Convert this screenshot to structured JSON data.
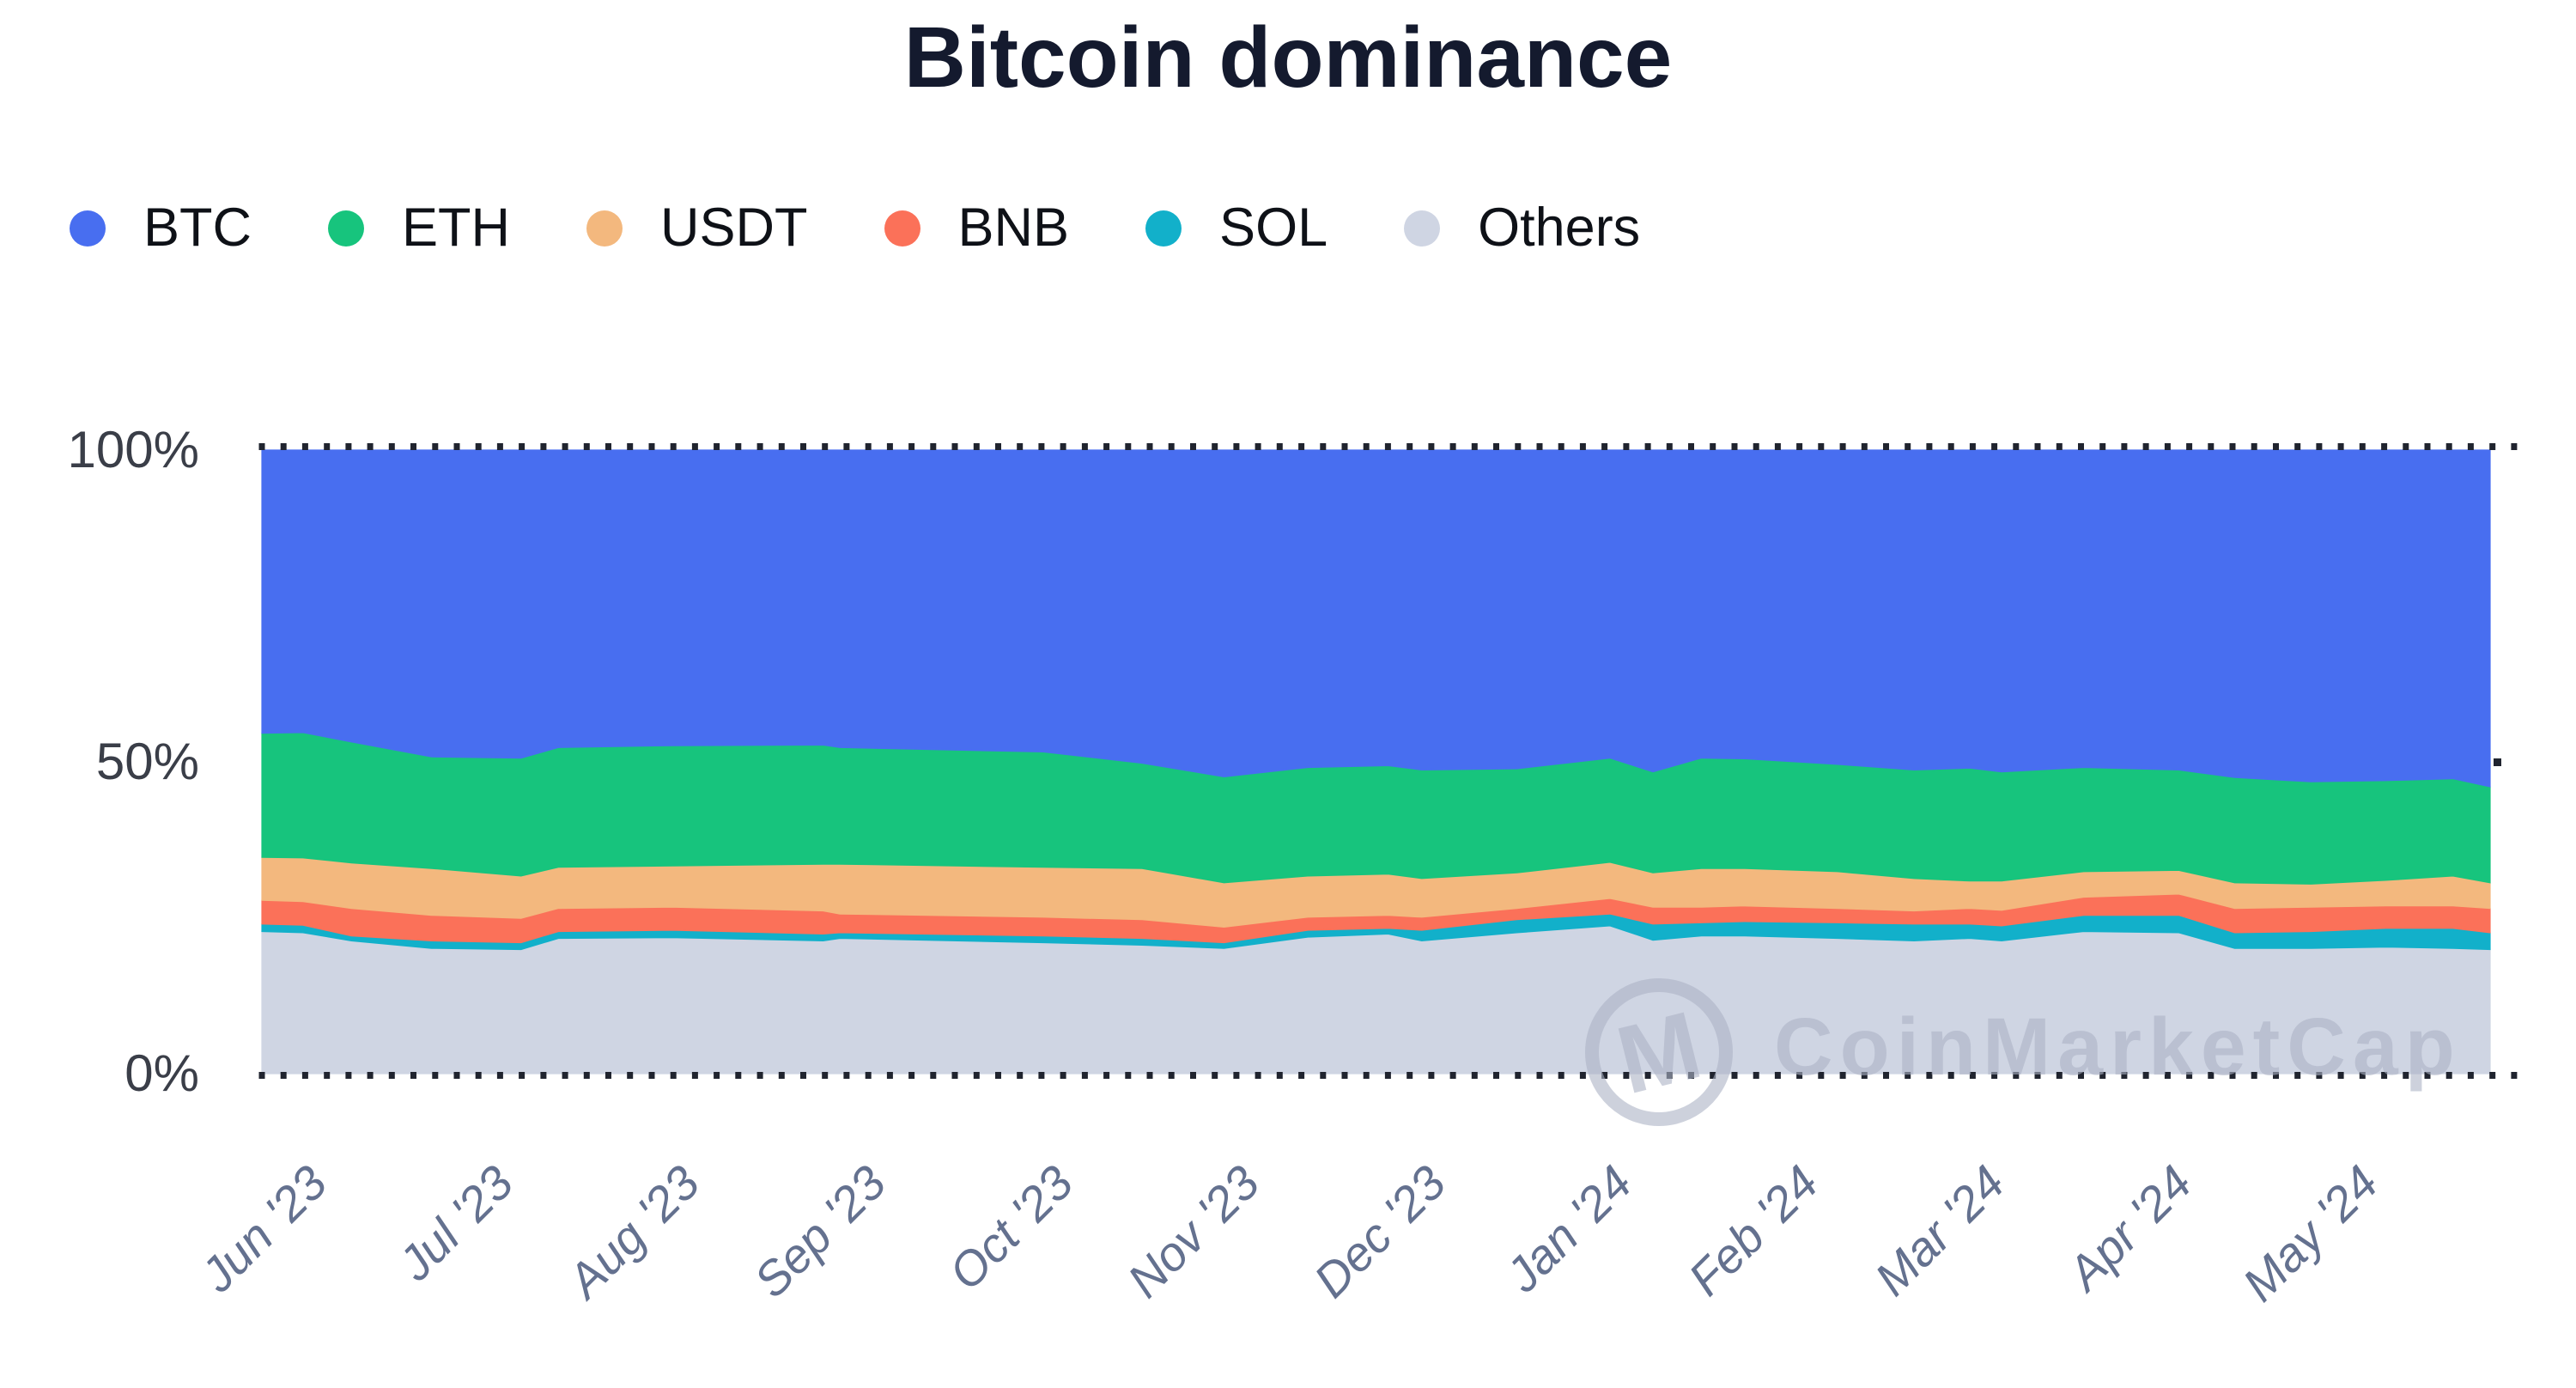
{
  "chart_data": {
    "type": "area",
    "stacked": true,
    "normalized_to_100_percent": true,
    "title": "Bitcoin dominance",
    "xlabel": "",
    "ylabel": "",
    "ylim": [
      0,
      100
    ],
    "grid": "dotted horizontal lines at 0% and 100%, small right tick at 50%",
    "legend_position": "top-left",
    "watermark": "CoinMarketCap",
    "watermark_logo_letter": "M",
    "x_tick_labels": [
      "Jun '23",
      "Jul '23",
      "Aug '23",
      "Sep '23",
      "Oct '23",
      "Nov '23",
      "Dec '23",
      "Jan '24",
      "Feb '24",
      "Mar '24",
      "Apr '24",
      "May '24"
    ],
    "y_ticks": [
      {
        "label": "100%",
        "value": 100
      },
      {
        "label": "50%",
        "value": 50
      },
      {
        "label": "0%",
        "value": 0
      }
    ],
    "x_months": [
      0.0,
      0.22,
      0.48,
      0.91,
      1.39,
      1.59,
      2.2,
      3.01,
      3.1,
      4.19,
      4.72,
      5.16,
      5.61,
      6.04,
      6.22,
      6.73,
      7.23,
      7.46,
      7.72,
      7.95,
      8.45,
      8.86,
      9.16,
      9.33,
      9.77,
      10.28,
      10.58,
      10.99,
      11.39,
      11.75,
      11.95
    ],
    "stack_order_bottom_up": [
      "Others",
      "SOL",
      "BNB",
      "USDT",
      "ETH",
      "BTC"
    ],
    "series": [
      {
        "name": "BTC",
        "color": "#486ef0",
        "values": [
          45.4,
          45.3,
          46.8,
          49.2,
          49.4,
          47.7,
          47.4,
          47.3,
          47.7,
          48.4,
          50.2,
          52.4,
          50.9,
          50.6,
          51.3,
          51.1,
          49.4,
          51.6,
          49.4,
          49.5,
          50.4,
          51.3,
          51.0,
          51.6,
          50.9,
          51.3,
          52.5,
          53.2,
          53.0,
          52.7,
          54.0
        ]
      },
      {
        "name": "ETH",
        "color": "#17c47d",
        "values": [
          19.9,
          20.1,
          19.4,
          17.9,
          18.9,
          19.2,
          19.3,
          19.1,
          18.7,
          18.5,
          16.9,
          17.0,
          17.4,
          17.4,
          17.4,
          16.7,
          16.7,
          16.2,
          17.7,
          17.6,
          17.2,
          17.4,
          18.1,
          17.5,
          16.7,
          16.1,
          16.9,
          16.4,
          16.0,
          15.6,
          15.4
        ]
      },
      {
        "name": "USDT",
        "color": "#f3b87e",
        "values": [
          6.9,
          7.0,
          7.3,
          7.5,
          6.8,
          6.6,
          6.6,
          7.5,
          8.0,
          8.0,
          8.2,
          7.1,
          6.6,
          6.6,
          6.2,
          5.7,
          5.8,
          5.5,
          6.2,
          6.0,
          5.9,
          5.2,
          4.4,
          4.7,
          4.1,
          3.8,
          4.1,
          3.7,
          4.1,
          4.8,
          4.1
        ]
      },
      {
        "name": "BNB",
        "color": "#fb7159",
        "values": [
          3.8,
          3.8,
          4.4,
          4.1,
          3.9,
          3.7,
          3.7,
          3.7,
          3.0,
          3.0,
          3.0,
          2.5,
          2.1,
          2.1,
          2.1,
          1.8,
          2.5,
          2.7,
          2.5,
          2.5,
          2.3,
          2.1,
          2.5,
          2.5,
          2.9,
          3.4,
          3.9,
          3.9,
          3.6,
          3.6,
          3.9
        ]
      },
      {
        "name": "SOL",
        "color": "#12b0ca",
        "values": [
          1.2,
          1.2,
          0.8,
          1.2,
          1.1,
          1.1,
          1.2,
          1.1,
          0.9,
          1.1,
          1.1,
          0.9,
          1.1,
          0.9,
          1.7,
          2.1,
          1.9,
          2.6,
          2.1,
          2.3,
          2.5,
          2.7,
          2.3,
          2.4,
          2.6,
          2.8,
          2.5,
          2.7,
          3.0,
          3.2,
          2.7
        ]
      },
      {
        "name": "Others",
        "color": "#cfd5e3",
        "values": [
          22.8,
          22.6,
          21.3,
          20.1,
          19.9,
          21.7,
          21.8,
          21.3,
          21.7,
          21.0,
          20.6,
          20.1,
          21.9,
          22.4,
          21.3,
          22.6,
          23.7,
          21.4,
          22.1,
          22.1,
          21.7,
          21.3,
          21.7,
          21.3,
          22.8,
          22.6,
          20.1,
          20.1,
          20.3,
          20.1,
          19.9
        ]
      }
    ]
  },
  "style_colors": {
    "background": "#ffffff",
    "title_text": "#141a2e",
    "y_axis_text": "#3a3e48",
    "x_axis_text": "#64718f",
    "legend_text": "#0e1117",
    "grid_dot": "#20242f",
    "watermark": "rgba(171,179,196,0.60)"
  }
}
